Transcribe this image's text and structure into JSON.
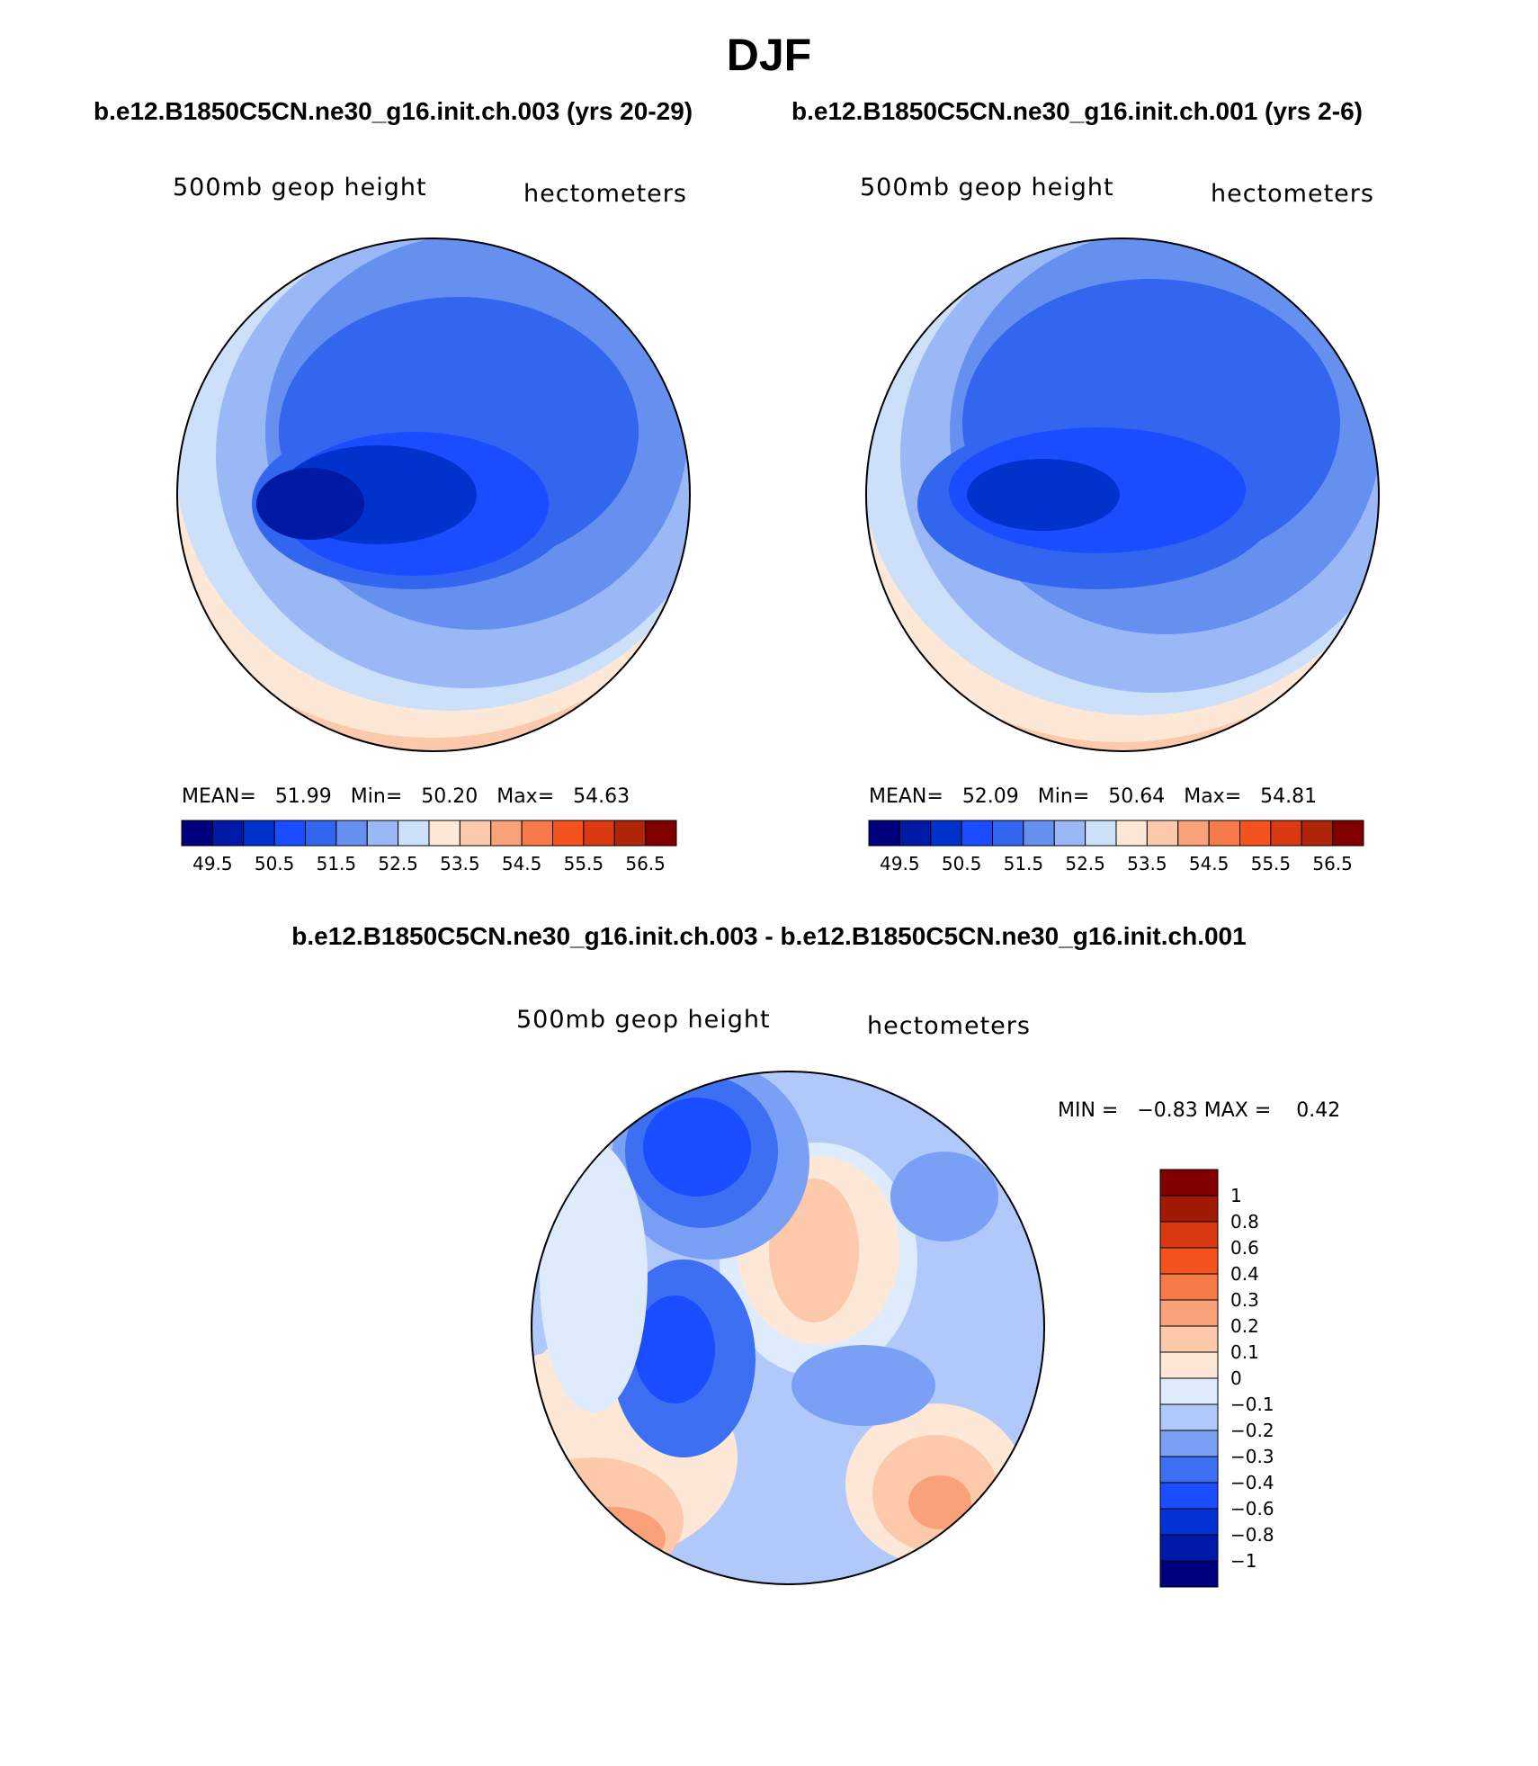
{
  "figure": {
    "title": "DJF",
    "diff_title": "b.e12.B1850C5CN.ne30_g16.init.ch.003 - b.e12.B1850C5CN.ne30_g16.init.ch.001"
  },
  "panels": [
    {
      "case": "b.e12.B1850C5CN.ne30_g16.init.ch.003 (yrs 20-29)",
      "left_label": "500mb geop height",
      "right_label": "hectometers",
      "stats": {
        "mean_label": "MEAN=",
        "mean": "51.99",
        "min_label": "Min=",
        "min": "50.20",
        "max_label": "Max=",
        "max": "54.63"
      }
    },
    {
      "case": "b.e12.B1850C5CN.ne30_g16.init.ch.001 (yrs 2-6)",
      "left_label": "500mb geop height",
      "right_label": "hectometers",
      "stats": {
        "mean_label": "MEAN=",
        "mean": "52.09",
        "min_label": "Min=",
        "min": "50.64",
        "max_label": "Max=",
        "max": "54.81"
      }
    },
    {
      "left_label": "500mb geop height",
      "right_label": "hectometers",
      "stats": {
        "min_label": "MIN =",
        "min": "−0.83",
        "max_label": "MAX =",
        "max": "0.42"
      }
    }
  ],
  "colorbars": {
    "mean": {
      "colors": [
        "#00007f",
        "#001aa6",
        "#0033cc",
        "#1a4dff",
        "#3366ee",
        "#6690f0",
        "#99b8f5",
        "#cce0fa",
        "#fde8d8",
        "#fcc9ab",
        "#f9a27a",
        "#f77a4b",
        "#f5531e",
        "#d93a12",
        "#b02408",
        "#800000"
      ],
      "tick_labels": [
        "49.5",
        "50.5",
        "51.5",
        "52.5",
        "53.5",
        "54.5",
        "55.5",
        "56.5"
      ]
    },
    "diff": {
      "colors": [
        "#00007f",
        "#0019a8",
        "#0032d4",
        "#1a4dff",
        "#3d6ff2",
        "#7aa0f5",
        "#b0c9fa",
        "#ddebfc",
        "#fde8d8",
        "#fcc9ab",
        "#f9a27a",
        "#f77a4b",
        "#f5531e",
        "#d93a12",
        "#a01a05",
        "#800000"
      ],
      "tick_labels": [
        "1",
        "0.8",
        "0.6",
        "0.4",
        "0.3",
        "0.2",
        "0.1",
        "0",
        "−0.1",
        "−0.2",
        "−0.3",
        "−0.4",
        "−0.6",
        "−0.8",
        "−1"
      ]
    }
  }
}
